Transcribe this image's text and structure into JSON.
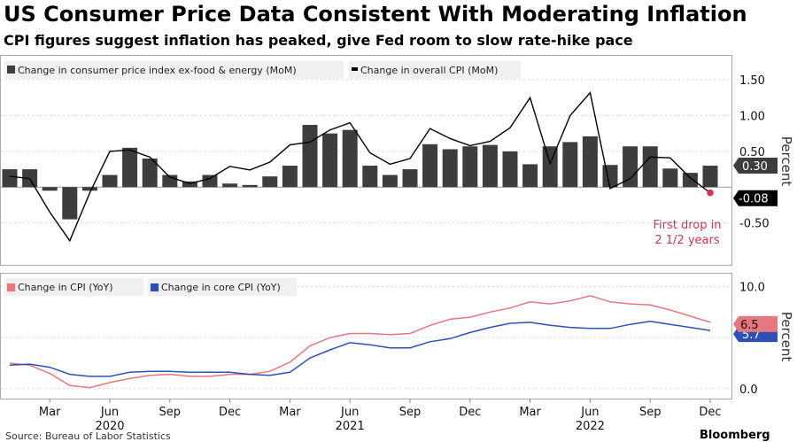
{
  "title": "US Consumer Price Data Consistent With Moderating Inflation",
  "subtitle": "CPI figures suggest inflation has peaked, give Fed room to slow rate-hike pace",
  "source": "Source: Bureau of Labor Statistics",
  "brand": "Bloomberg",
  "colors": {
    "core_bar": "#3d3d3d",
    "overall_line": "#000000",
    "cpi_yoy": "#e8767e",
    "core_yoy": "#2d4fb8",
    "annotation": "#d0374f",
    "tag_gray": "#3d3d3d"
  },
  "chart_data": [
    {
      "type": "bar",
      "ylabel": "Percent",
      "ylim": [
        -1.0,
        1.7
      ],
      "yticks": [
        "1.50",
        "1.00",
        "0.50",
        "-0.50"
      ],
      "ytick_values": [
        1.5,
        1.0,
        0.5,
        -0.5
      ],
      "legend": [
        "Change in consumer price index ex-food & energy (MoM)",
        "Change in overall CPI (MoM)"
      ],
      "series": [
        {
          "name": "Change in consumer price index ex-food & energy (MoM)",
          "type": "bar",
          "values": [
            0.25,
            0.25,
            -0.05,
            -0.45,
            -0.05,
            0.17,
            0.55,
            0.4,
            0.17,
            0.08,
            0.17,
            0.05,
            0.03,
            0.15,
            0.3,
            0.87,
            0.75,
            0.8,
            0.3,
            0.17,
            0.25,
            0.6,
            0.53,
            0.57,
            0.59,
            0.5,
            0.32,
            0.57,
            0.63,
            0.71,
            0.31,
            0.57,
            0.57,
            0.26,
            0.2,
            0.3
          ]
        },
        {
          "name": "Change in overall CPI (MoM)",
          "type": "line",
          "values": [
            0.15,
            0.12,
            -0.35,
            -0.75,
            -0.08,
            0.5,
            0.52,
            0.42,
            0.14,
            0.05,
            0.12,
            0.29,
            0.24,
            0.35,
            0.59,
            0.63,
            0.8,
            0.9,
            0.48,
            0.32,
            0.4,
            0.82,
            0.68,
            0.58,
            0.64,
            0.83,
            1.25,
            0.33,
            1.0,
            1.32,
            -0.02,
            0.12,
            0.42,
            0.41,
            0.13,
            -0.08
          ]
        }
      ],
      "last_labels": [
        "0.30",
        "-0.08"
      ],
      "annotation": [
        "First drop in",
        "2 1/2 years"
      ]
    },
    {
      "type": "line",
      "ylabel": "Percent",
      "ylim": [
        -0.8,
        11.0
      ],
      "yticks": [
        "10.0",
        "5.0",
        "0.0"
      ],
      "ytick_values": [
        10.0,
        5.0,
        0.0
      ],
      "legend": [
        "Change in CPI (YoY)",
        "Change in core CPI (YoY)"
      ],
      "series": [
        {
          "name": "Change in CPI (YoY)",
          "values": [
            2.5,
            2.3,
            1.5,
            0.3,
            0.1,
            0.6,
            1.0,
            1.3,
            1.4,
            1.2,
            1.2,
            1.4,
            1.4,
            1.7,
            2.6,
            4.2,
            5.0,
            5.4,
            5.4,
            5.3,
            5.4,
            6.2,
            6.8,
            7.0,
            7.5,
            7.9,
            8.5,
            8.3,
            8.6,
            9.1,
            8.5,
            8.3,
            8.2,
            7.7,
            7.1,
            6.5
          ]
        },
        {
          "name": "Change in core CPI (YoY)",
          "values": [
            2.3,
            2.4,
            2.1,
            1.4,
            1.2,
            1.2,
            1.6,
            1.7,
            1.7,
            1.6,
            1.6,
            1.6,
            1.4,
            1.3,
            1.6,
            3.0,
            3.8,
            4.5,
            4.3,
            4.0,
            4.0,
            4.6,
            4.9,
            5.5,
            6.0,
            6.4,
            6.5,
            6.2,
            6.0,
            5.9,
            5.9,
            6.3,
            6.6,
            6.3,
            6.0,
            5.7
          ]
        }
      ],
      "last_labels": [
        "6.5",
        "5.7"
      ]
    }
  ],
  "x_axis": {
    "months": [
      "Mar",
      "Jun",
      "Sep",
      "Dec",
      "Mar",
      "Jun",
      "Sep",
      "Dec",
      "Mar",
      "Jun",
      "Sep",
      "Dec"
    ],
    "years": [
      "2020",
      "2021",
      "2022"
    ]
  }
}
